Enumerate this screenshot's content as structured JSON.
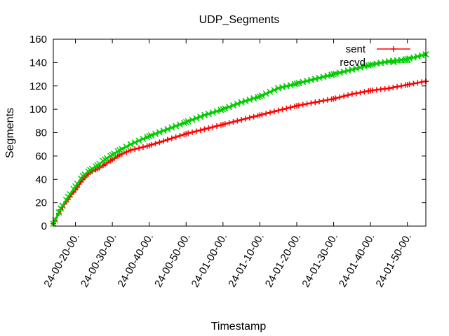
{
  "chart_data": {
    "type": "line",
    "title": "UDP_Segments",
    "xlabel": "Timestamp",
    "ylabel": "Segments",
    "xlim": [
      "24-00-14",
      "24-01-55"
    ],
    "ylim": [
      0,
      160
    ],
    "y_ticks": [
      0,
      20,
      40,
      60,
      80,
      100,
      120,
      140,
      160
    ],
    "x_ticks": [
      "24-00-20-00.",
      "24-00-30-00.",
      "24-00-40-00.",
      "24-00-50-00.",
      "24-01-00-00.",
      "24-01-10-00.",
      "24-01-20-00.",
      "24-01-30-00.",
      "24-01-40-00.",
      "24-01-50-00."
    ],
    "grid": false,
    "legend_position": "top-right",
    "series": [
      {
        "name": "sent",
        "color": "#ff0000",
        "marker": "plus",
        "x": [
          "24-00-14",
          "24-00-16",
          "24-00-18",
          "24-00-20",
          "24-00-22",
          "24-00-24",
          "24-00-26",
          "24-00-28",
          "24-00-30",
          "24-00-32",
          "24-00-35",
          "24-00-40",
          "24-00-45",
          "24-00-50",
          "24-00-55",
          "24-01-00",
          "24-01-05",
          "24-01-10",
          "24-01-15",
          "24-01-20",
          "24-01-25",
          "24-01-30",
          "24-01-35",
          "24-01-40",
          "24-01-45",
          "24-01-50",
          "24-01-55"
        ],
        "y": [
          2,
          14,
          23,
          31,
          40,
          46,
          49,
          53,
          57,
          61,
          65,
          69,
          74,
          79,
          83,
          87,
          91,
          95,
          99,
          103,
          106,
          109,
          113,
          116,
          118,
          121,
          124
        ]
      },
      {
        "name": "recvd",
        "color": "#00cc00",
        "marker": "x",
        "x": [
          "24-00-14",
          "24-00-16",
          "24-00-18",
          "24-00-20",
          "24-00-22",
          "24-00-24",
          "24-00-26",
          "24-00-28",
          "24-00-30",
          "24-00-32",
          "24-00-35",
          "24-00-40",
          "24-00-45",
          "24-00-50",
          "24-00-55",
          "24-01-00",
          "24-01-05",
          "24-01-10",
          "24-01-15",
          "24-01-20",
          "24-01-25",
          "24-01-30",
          "24-01-35",
          "24-01-40",
          "24-01-45",
          "24-01-50",
          "24-01-55"
        ],
        "y": [
          2,
          15,
          25,
          34,
          43,
          48,
          52,
          57,
          61,
          65,
          70,
          77,
          83,
          89,
          95,
          100,
          106,
          111,
          118,
          122,
          126,
          130,
          134,
          138,
          141,
          143,
          147
        ]
      }
    ]
  }
}
